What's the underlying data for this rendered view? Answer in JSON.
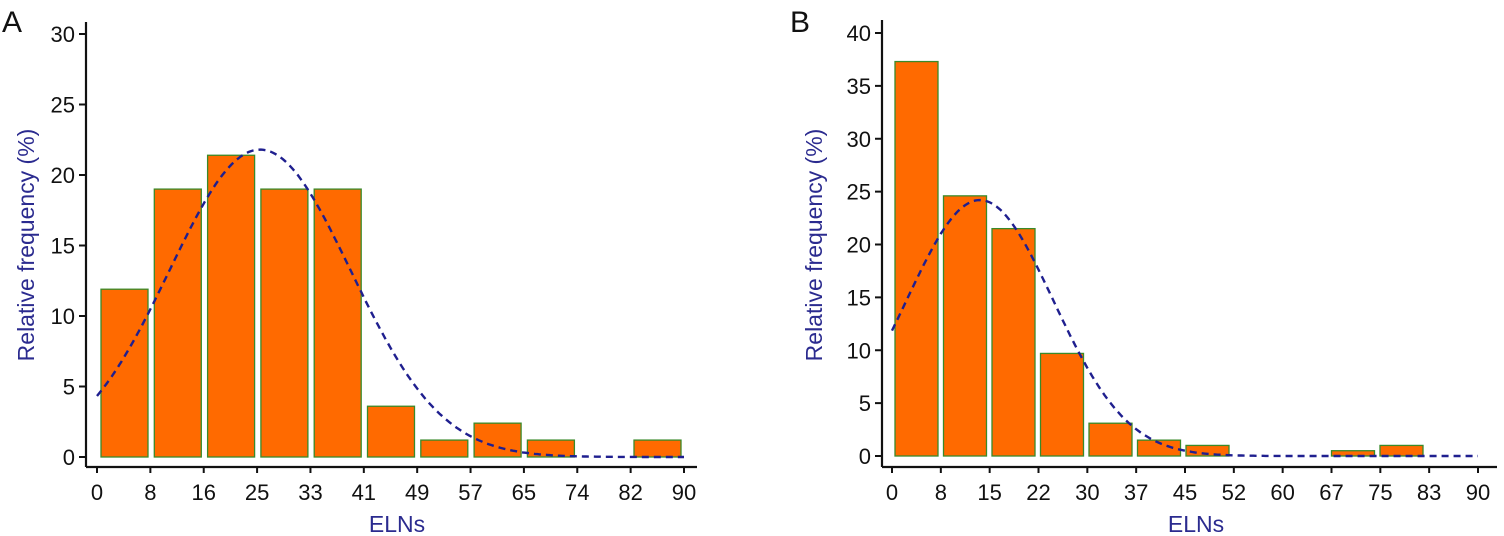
{
  "colors": {
    "bar": "#ff6a00",
    "bar_border": "#3a8a2a",
    "curve": "#1f1f8f",
    "axis_title": "#2b2b8f"
  },
  "chart_data": [
    {
      "type": "bar",
      "panel_label": "A",
      "xlabel": "ELNs",
      "ylabel": "Relative frequency (%)",
      "x_ticks": [
        "0",
        "8",
        "16",
        "25",
        "33",
        "41",
        "49",
        "57",
        "65",
        "74",
        "82",
        "90"
      ],
      "y_ticks": [
        "0",
        "5",
        "10",
        "15",
        "20",
        "25",
        "30"
      ],
      "ylim": [
        0,
        30
      ],
      "values": [
        11.9,
        19.0,
        21.4,
        19.0,
        19.0,
        3.6,
        1.2,
        2.4,
        1.2,
        0,
        1.2
      ],
      "overlay": {
        "type": "line",
        "style": "dashed",
        "description": "normal fit",
        "mean": 25,
        "sd": 13.9,
        "peak": 21.8
      }
    },
    {
      "type": "bar",
      "panel_label": "B",
      "xlabel": "ELNs",
      "ylabel": "Relative frequency (%)",
      "x_ticks": [
        "0",
        "8",
        "15",
        "22",
        "30",
        "37",
        "45",
        "52",
        "60",
        "67",
        "75",
        "83",
        "90"
      ],
      "y_ticks": [
        "0",
        "5",
        "10",
        "15",
        "20",
        "25",
        "30",
        "35",
        "40"
      ],
      "ylim": [
        0,
        40
      ],
      "values": [
        37.3,
        24.6,
        21.5,
        9.7,
        3.1,
        1.5,
        1.0,
        0,
        0,
        0.5,
        1.0,
        0
      ],
      "overlay": {
        "type": "line",
        "style": "dashed",
        "description": "normal fit",
        "mean": 13.5,
        "sd": 11.3,
        "peak": 24.2
      }
    }
  ]
}
